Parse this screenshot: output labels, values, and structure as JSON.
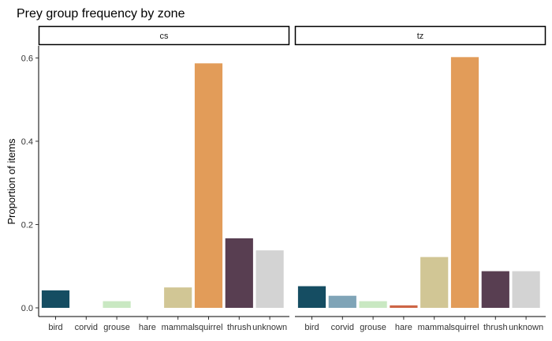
{
  "chart_data": {
    "type": "bar",
    "title": "Prey group frequency by zone",
    "ylabel": "Proportion of items",
    "xlabel": "",
    "ylim": [
      0,
      0.62
    ],
    "yticks": [
      0.0,
      0.2,
      0.4,
      0.6
    ],
    "ytick_labels": [
      "0.0",
      "0.2",
      "0.4",
      "0.6"
    ],
    "grid": false,
    "legend": "none",
    "categories": [
      "bird",
      "corvid",
      "grouse",
      "hare",
      "mammal",
      "squirrel",
      "thrush",
      "unknown"
    ],
    "colors": {
      "bird": "#154D62",
      "corvid": "#7FA4B7",
      "grouse": "#C9E8C2",
      "hare": "#CD6546",
      "mammal": "#D1C695",
      "squirrel": "#E29C59",
      "thrush": "#583E51",
      "unknown": "#D3D3D3"
    },
    "panels": [
      {
        "label": "cs",
        "values": [
          0.042,
          0.0,
          0.016,
          0.0,
          0.049,
          0.587,
          0.167,
          0.138
        ]
      },
      {
        "label": "tz",
        "values": [
          0.052,
          0.029,
          0.016,
          0.006,
          0.122,
          0.602,
          0.088,
          0.088
        ]
      }
    ]
  }
}
